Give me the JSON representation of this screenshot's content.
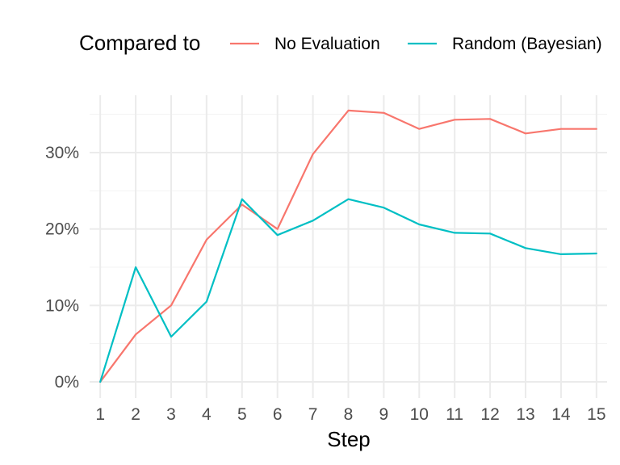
{
  "chart_data": {
    "type": "line",
    "xlabel": "Step",
    "ylabel": "",
    "legend_title": "Compared to",
    "legend_position": "top",
    "grid": true,
    "x": [
      1,
      2,
      3,
      4,
      5,
      6,
      7,
      8,
      9,
      10,
      11,
      12,
      13,
      14,
      15
    ],
    "xlim": [
      0.7,
      15.3
    ],
    "ylim": [
      0,
      0.35
    ],
    "y_ticks": [
      0,
      0.1,
      0.2,
      0.3
    ],
    "y_tick_labels": [
      "0%",
      "10%",
      "20%",
      "30%"
    ],
    "series": [
      {
        "name": "No Evaluation",
        "color": "#f8766d",
        "values": [
          0.0,
          0.062,
          0.1,
          0.186,
          0.232,
          0.2,
          0.298,
          0.355,
          0.352,
          0.331,
          0.343,
          0.344,
          0.325,
          0.331,
          0.331
        ]
      },
      {
        "name": "Random (Bayesian)",
        "color": "#00bfc4",
        "values": [
          0.0,
          0.15,
          0.059,
          0.105,
          0.239,
          0.192,
          0.211,
          0.239,
          0.228,
          0.206,
          0.195,
          0.194,
          0.175,
          0.167,
          0.168
        ]
      }
    ]
  }
}
